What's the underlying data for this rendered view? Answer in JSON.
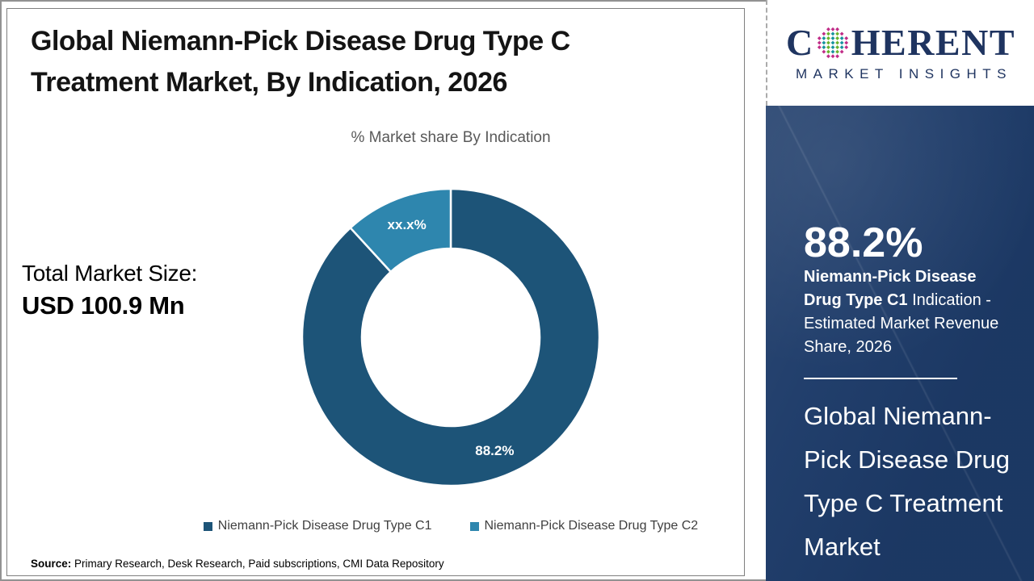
{
  "page": {
    "title": "Global Niemann-Pick Disease Drug Type C\nTreatment Market, By Indication, 2026"
  },
  "chart": {
    "subtitle": "% Market share By Indication"
  },
  "total": {
    "label": "Total Market Size:",
    "value": "USD 100.9 Mn"
  },
  "chart_data": {
    "type": "pie",
    "donut": true,
    "title": "% Market share By Indication",
    "labels": [
      "Niemann-Pick Disease Drug Type C1",
      "Niemann-Pick Disease Drug Type C2"
    ],
    "values": [
      88.2,
      11.8
    ],
    "display_labels": [
      "88.2%",
      "xx.x%"
    ],
    "colors": [
      "#1d5478",
      "#2e86ae"
    ],
    "start_angle_deg": 0,
    "direction": "clockwise",
    "legend_position": "bottom"
  },
  "sidebar": {
    "brand": {
      "name_prefix": "C",
      "name_suffix": "HERENT",
      "tagline": "MARKET INSIGHTS",
      "navy": "#1f3460",
      "dot_outer": "#c02c87",
      "dot_teal": "#15939e",
      "dot_green": "#69b42e"
    },
    "stat_value": "88.2%",
    "stat_bold": "Niemann-Pick Disease Drug Type C1",
    "stat_rest": " Indication - Estimated Market Revenue Share, 2026",
    "market_name": "Global Niemann-\nPick Disease Drug\nType C Treatment\nMarket"
  },
  "footer": {
    "source_label": "Source:",
    "source_text": " Primary Research, Desk Research, Paid subscriptions, CMI Data Repository"
  }
}
